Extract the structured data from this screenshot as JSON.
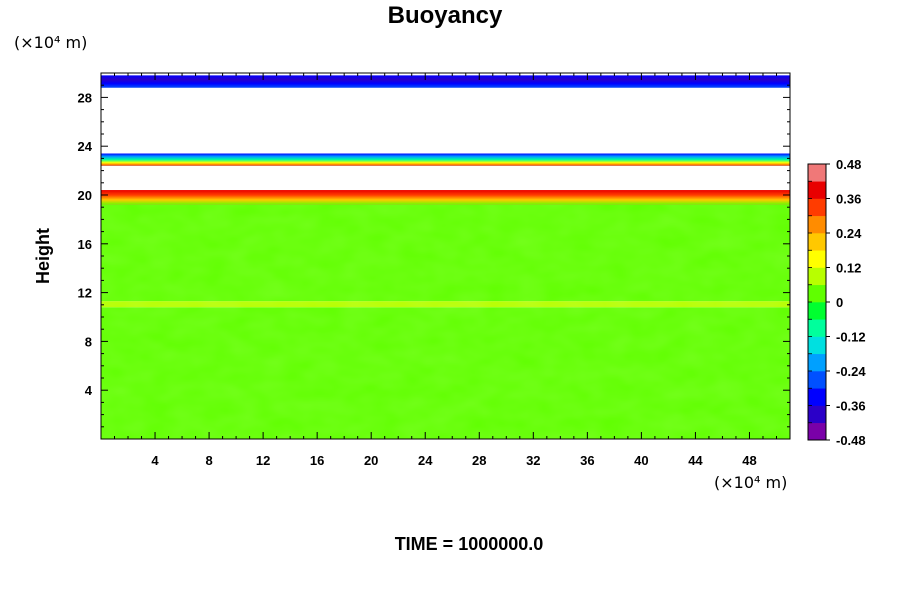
{
  "chart_data": {
    "type": "heatmap",
    "title": "Buoyancy",
    "ylabel": "Height",
    "xlabel": "",
    "x_units": "(×10⁴ m)",
    "y_units": "(×10⁴ m)",
    "xlim": [
      0,
      51
    ],
    "ylim": [
      0,
      30
    ],
    "x_ticks": [
      4,
      8,
      12,
      16,
      20,
      24,
      28,
      32,
      36,
      40,
      44,
      48
    ],
    "x_tick_labels": [
      "4",
      "8",
      "12",
      "16",
      "20",
      "24",
      "28",
      "32",
      "36",
      "40",
      "44",
      "48"
    ],
    "y_ticks": [
      4,
      8,
      12,
      16,
      20,
      24,
      28
    ],
    "y_tick_labels": [
      "4",
      "8",
      "12",
      "16",
      "20",
      "24",
      "28"
    ],
    "colorbar": {
      "min": -0.48,
      "max": 0.48,
      "ticks": [
        0.48,
        0.36,
        0.24,
        0.12,
        0,
        -0.12,
        -0.24,
        -0.36,
        -0.48
      ],
      "tick_labels": [
        "0.48",
        "0.36",
        "0.24",
        "0.12",
        "0",
        "-0.12",
        "-0.24",
        "-0.36",
        "-0.48"
      ],
      "colors": [
        "#7a00a8",
        "#2b00c8",
        "#0000ff",
        "#0050ff",
        "#00a0ff",
        "#00e0e0",
        "#00ff9c",
        "#00ff30",
        "#60ff00",
        "#b8ff00",
        "#ffff00",
        "#ffc800",
        "#ff8c00",
        "#ff3c00",
        "#e80000",
        "#f07878"
      ]
    },
    "layers": [
      {
        "y_from": 0,
        "y_to": 10.8,
        "value": 0
      },
      {
        "y_from": 10.8,
        "y_to": 11.3,
        "value": 0.08
      },
      {
        "y_from": 11.3,
        "y_to": 19.2,
        "value": 0.02
      },
      {
        "y_from": 19.2,
        "y_to": 20.4,
        "value": 0.35
      },
      {
        "y_from": 20.4,
        "y_to": 22.4,
        "value": null
      },
      {
        "y_from": 22.4,
        "y_to": 23.4,
        "value": -0.2
      },
      {
        "y_from": 23.4,
        "y_to": 28.8,
        "value": null
      },
      {
        "y_from": 28.8,
        "y_to": 29.8,
        "value": -0.4
      }
    ]
  },
  "footer": {
    "time_label": "TIME = 1000000.0"
  }
}
